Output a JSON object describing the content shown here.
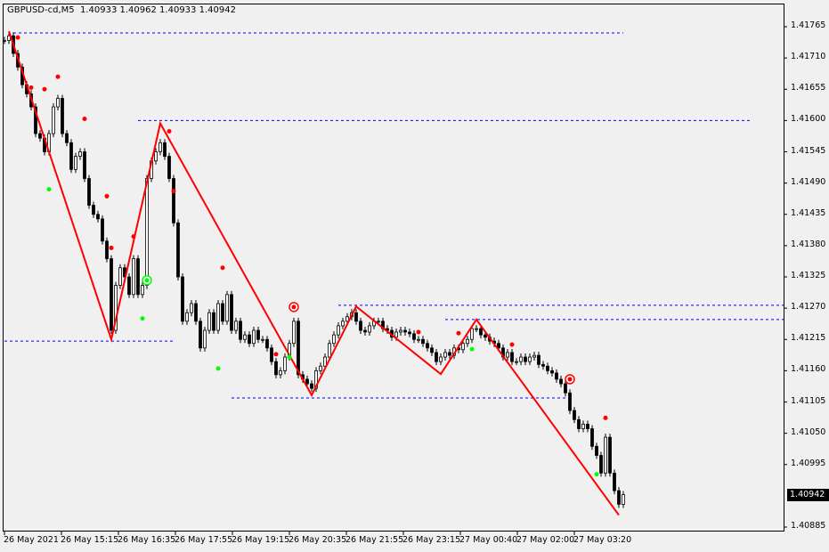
{
  "window": {
    "title": "GBPUSD-cd,M5  1.40933 1.40962 1.40933 1.40942"
  },
  "colors": {
    "background": "#f0f0f0",
    "zigzag": "#ff0000",
    "levels": "#0000ff",
    "signal_sell": "#ff0000",
    "signal_buy": "#00ff00",
    "bull_body": "#ffffff",
    "bear_body": "#000000",
    "current_price_bg": "#000000"
  },
  "chart_data": {
    "type": "candlestick",
    "symbol": "GBPUSD-cd",
    "timeframe": "M5",
    "ohlc_last": {
      "open": 1.40933,
      "high": 1.40962,
      "low": 1.40933,
      "close": 1.40942
    },
    "current_price": "1.40942",
    "ylim": [
      1.4087,
      1.4179
    ],
    "y_ticks": [
      "1.41765",
      "1.41710",
      "1.41655",
      "1.41600",
      "1.41545",
      "1.41490",
      "1.41435",
      "1.41380",
      "1.41325",
      "1.41270",
      "1.41215",
      "1.41160",
      "1.41105",
      "1.41050",
      "1.40995",
      "1.40885"
    ],
    "x_ticks": [
      "26 May 2021",
      "26 May 15:15",
      "26 May 16:35",
      "26 May 17:55",
      "26 May 19:15",
      "26 May 20:35",
      "26 May 21:55",
      "26 May 23:15",
      "27 May 00:40",
      "27 May 02:00",
      "27 May 03:20"
    ],
    "closes": [
      1.41741,
      1.41749,
      1.41718,
      1.41694,
      1.41663,
      1.41647,
      1.41624,
      1.41577,
      1.41569,
      1.41545,
      1.41577,
      1.41624,
      1.41639,
      1.41577,
      1.41561,
      1.41514,
      1.41537,
      1.41545,
      1.41498,
      1.41451,
      1.41435,
      1.41427,
      1.41388,
      1.41357,
      1.41231,
      1.4131,
      1.41341,
      1.41325,
      1.41294,
      1.41357,
      1.41294,
      1.4131,
      1.41498,
      1.41529,
      1.41545,
      1.41561,
      1.41537,
      1.41498,
      1.4142,
      1.41325,
      1.41247,
      1.41262,
      1.41278,
      1.41247,
      1.412,
      1.41231,
      1.41262,
      1.41231,
      1.41278,
      1.41247,
      1.41294,
      1.41231,
      1.41247,
      1.41215,
      1.41223,
      1.41208,
      1.41231,
      1.41215,
      1.41215,
      1.412,
      1.41176,
      1.41153,
      1.4116,
      1.41184,
      1.41208,
      1.41247,
      1.41153,
      1.41145,
      1.41137,
      1.41129,
      1.4116,
      1.41168,
      1.41184,
      1.41208,
      1.41223,
      1.41239,
      1.41247,
      1.41255,
      1.41262,
      1.41247,
      1.41231,
      1.41228,
      1.41239,
      1.41247,
      1.41247,
      1.41234,
      1.41231,
      1.41219,
      1.41228,
      1.41231,
      1.41228,
      1.41225,
      1.41215,
      1.41215,
      1.41208,
      1.412,
      1.41192,
      1.41176,
      1.41184,
      1.41192,
      1.41187,
      1.412,
      1.41197,
      1.41208,
      1.41215,
      1.41234,
      1.41234,
      1.41223,
      1.41219,
      1.41212,
      1.41208,
      1.412,
      1.41184,
      1.41192,
      1.41176,
      1.41176,
      1.41184,
      1.41176,
      1.41184,
      1.41187,
      1.41171,
      1.41168,
      1.4116,
      1.41156,
      1.41145,
      1.41137,
      1.41121,
      1.4109,
      1.41074,
      1.41058,
      1.41066,
      1.41058,
      1.41027,
      1.41011,
      1.4098,
      1.41043,
      1.4098,
      1.40949,
      1.40925,
      1.40942
    ],
    "zigzag": [
      [
        1,
        1.41757
      ],
      [
        24,
        1.41215
      ],
      [
        35,
        1.41595
      ],
      [
        69,
        1.41117
      ],
      [
        79,
        1.41273
      ],
      [
        98,
        1.41154
      ],
      [
        106,
        1.4125
      ],
      [
        138,
        1.40906
      ]
    ],
    "levels": [
      {
        "price": 1.41754,
        "from": 2,
        "to": 139
      },
      {
        "price": 1.416,
        "from": 30,
        "to": 168
      },
      {
        "price": 1.41275,
        "from": 75,
        "to": 175
      },
      {
        "price": 1.4125,
        "from": 99,
        "to": 175
      },
      {
        "price": 1.41212,
        "from": 0,
        "to": 38
      },
      {
        "price": 1.41112,
        "from": 51,
        "to": 127
      }
    ],
    "sell_dots": [
      [
        3,
        1.41746
      ],
      [
        6,
        1.41658
      ],
      [
        9,
        1.41655
      ],
      [
        12,
        1.41677
      ],
      [
        18,
        1.41603
      ],
      [
        23,
        1.41467
      ],
      [
        24,
        1.41376
      ],
      [
        29,
        1.41396
      ],
      [
        37,
        1.41581
      ],
      [
        38,
        1.41476
      ],
      [
        49,
        1.41341
      ],
      [
        61,
        1.41189
      ],
      [
        93,
        1.41228
      ],
      [
        102,
        1.41226
      ],
      [
        114,
        1.41206
      ],
      [
        135,
        1.41077
      ]
    ],
    "buy_dots": [
      [
        10,
        1.41479
      ],
      [
        31,
        1.41252
      ],
      [
        48,
        1.41164
      ],
      [
        64,
        1.41184
      ],
      [
        105,
        1.41198
      ],
      [
        133,
        1.40978
      ]
    ],
    "sell_targets": [
      [
        65,
        1.41272
      ],
      [
        127,
        1.41145
      ]
    ],
    "buy_targets": [
      [
        32,
        1.41319
      ]
    ]
  }
}
